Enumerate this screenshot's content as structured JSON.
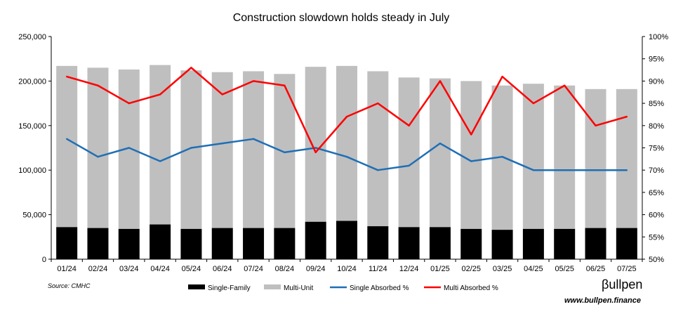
{
  "chart_data": {
    "type": "bar",
    "title": "Construction slowdown holds steady in July",
    "categories": [
      "01/24",
      "02/24",
      "03/24",
      "04/24",
      "05/24",
      "06/24",
      "07/24",
      "08/24",
      "09/24",
      "10/24",
      "11/24",
      "12/24",
      "01/25",
      "02/25",
      "03/25",
      "04/25",
      "05/25",
      "06/25",
      "07/25"
    ],
    "bar_series": [
      {
        "name": "Single-Family",
        "color": "#000000",
        "values": [
          36000,
          35000,
          34000,
          39000,
          34000,
          35000,
          35000,
          35000,
          42000,
          43000,
          37000,
          36000,
          36000,
          34000,
          33000,
          34000,
          34000,
          35000,
          35000
        ]
      },
      {
        "name": "Multi-Unit",
        "color": "#bfbfbf",
        "values": [
          181000,
          180000,
          179000,
          179000,
          178000,
          175000,
          176000,
          173000,
          174000,
          174000,
          174000,
          168000,
          167000,
          166000,
          162000,
          163000,
          161000,
          156000,
          156000
        ]
      }
    ],
    "line_series": [
      {
        "name": "Single Absorbed %",
        "color": "#1f6fb5",
        "values": [
          77,
          73,
          75,
          72,
          75,
          76,
          77,
          74,
          75,
          73,
          70,
          71,
          76,
          72,
          73,
          70,
          70,
          70,
          70
        ]
      },
      {
        "name": "Multi Absorbed %",
        "color": "#ff0000",
        "values": [
          91,
          89,
          85,
          87,
          93,
          87,
          90,
          89,
          74,
          82,
          85,
          80,
          90,
          78,
          91,
          85,
          89,
          80,
          82
        ]
      }
    ],
    "y_left": {
      "min": 0,
      "max": 250000,
      "step": 50000,
      "tick_labels": [
        "0",
        "50,000",
        "100,000",
        "150,000",
        "200,000",
        "250,000"
      ]
    },
    "y_right": {
      "min": 50,
      "max": 100,
      "step": 5,
      "tick_labels": [
        "50%",
        "55%",
        "60%",
        "65%",
        "70%",
        "75%",
        "80%",
        "85%",
        "90%",
        "95%",
        "100%"
      ]
    },
    "legend": {
      "position": "bottom",
      "items": [
        "Single-Family",
        "Multi-Unit",
        "Single Absorbed %",
        "Multi Absorbed %"
      ]
    },
    "grid": false
  },
  "footer": {
    "source": "Source: CMHC",
    "brand": "βullpen",
    "website": "www.bullpen.finance"
  }
}
